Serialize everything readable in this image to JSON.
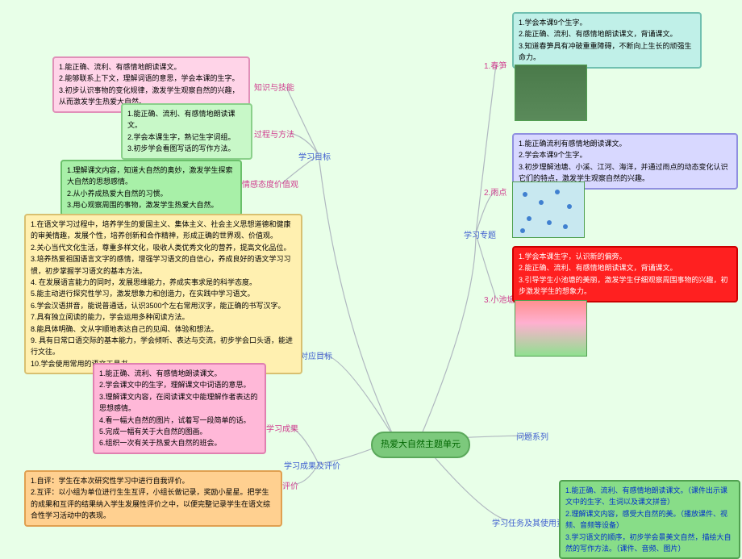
{
  "center": "热爱大自然主题单元",
  "branches": {
    "b1": "学习目标",
    "b2": "学习专题",
    "b3": "对应目标",
    "b4": "学习成果及评价",
    "b5": "问题系列",
    "b6": "学习任务及其使用资源",
    "s1": "知识与技能",
    "s2": "过程与方法",
    "s3": "情感态度价值观",
    "s4": "1.春笋",
    "s5": "2.雨点",
    "s6": "3.小池塘",
    "s7": "学习成果",
    "s8": "评价"
  },
  "box1": [
    "1.能正确、流利、有感情地朗读课文。",
    "2.能够联系上下文，理解词语的意思，学会本课的生字。",
    "3.初步认识事物的变化规律，激发学生观察自然的兴趣，从而激发学生热爱大自然。"
  ],
  "box2": [
    "1.能正确、流利、有感情地朗读课文。",
    "2.学会本课生字，熟记生字词组。",
    "3.初步学会看图写话的写作方法。"
  ],
  "box3": [
    "1.理解课文内容，知道大自然的奥妙，激发学生探索大自然的思想感情。",
    "2.从小养成热爱大自然的习惯。",
    "3.用心观察周围的事物，激发学生热爱大自然。"
  ],
  "box4": [
    "1.在语文学习过程中，培养学生的爱国主义、集体主义、社会主义思想道德和健康的审美情趣，发展个性，培养创新和合作精神，形成正确的世界观、价值观。",
    "2.关心当代文化生活，尊重多样文化，吸收人类优秀文化的营养，提高文化品位。",
    "3.培养热爱祖国语言文字的感情，增强学习语文的自信心，养成良好的语文学习习惯，初步掌握学习语文的基本方法。",
    "4. 在发展语言能力的同时，发展思维能力，养成实事求是的科学态度。",
    "5.能主动进行探究性学习，激发想象力和创造力，在实践中学习语文。",
    "6.学会汉语拼音，能说普通话，认识3500个左右常用汉字，能正确的书写汉字。",
    "7.具有独立阅读的能力，学会运用多种阅读方法。",
    "8.能具体明确、文从字顺地表达自己的见闻、体验和想法。",
    "9. 具有日常口语交际的基本能力，学会倾听、表达与交流，初步学会口头语，能进行文往。",
    "10.学会使用常用的语文工具书。"
  ],
  "box5": [
    "1.能正确、流利、有感情地朗读课文。",
    "2.学会课文中的生字，理解课文中词语的意思。",
    "3.理解课文内容，在阅读课文中能理解作者表达的思想感情。",
    "4.看一幅大自然的图片，试着写一段简单的话。",
    "5.完成一幅有关于大自然的图画。",
    "6.组织一次有关于热爱大自然的班会。"
  ],
  "box6": [
    "1.自评：学生在本次研究性学习中进行自我评价。",
    "2.互评：以小组为单位进行生生互评，小组长做记录，奖励小星星。把学生的成果和互评的结果纳入学生发展性评价之中，以便完整记录学生在语文综合性学习活动中的表现。"
  ],
  "box7": [
    "1.学会本课9个生字。",
    "2.能正确、流利、有感情地朗读课文，背诵课文。",
    "3.知道春笋具有冲破重重障碍，不断向上生长的顽强生命力。"
  ],
  "box8": [
    "1.能正确流利有感情地朗读课文。",
    "2.学会本课9个生字。",
    "3.初步理解池塘、小溪、江河、海洋，并通过雨点的动态变化认识它们的特点，激发学生观察自然的兴趣。"
  ],
  "box9": [
    "1.学会本课生字，认识新的偏旁。",
    "2.能正确、流利、有感情地朗读课文，背诵课文。",
    "3.引导学生小池塘的美丽，激发学生仔细观察周围事物的兴趣，初步激发学生的想象力。"
  ],
  "box10": [
    "1.能正确、流利、有感情地朗读课文。（课件出示课文中的生字、生词以及课文拼音）",
    "2.理解课文内容，感受大自然的美。（播放课件、视频、音频等设备）",
    "3.学习语文的顺序，初步学会景美文自然，描绘大自然的写作方法。（课件、音频、图片）"
  ],
  "colors": {
    "center_bg": "#7cc97c",
    "center_border": "#5aa85a",
    "bg": "#e8ffe8",
    "line": "#b0b8c0"
  }
}
